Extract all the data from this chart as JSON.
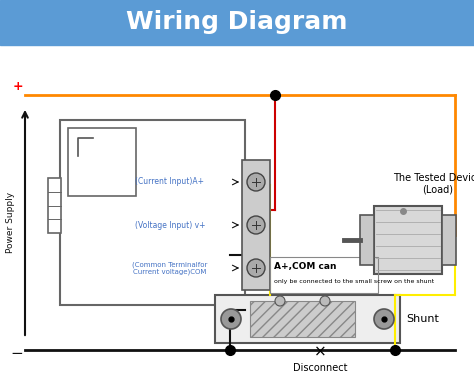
{
  "title": "Wiring Diagram",
  "title_color": "white",
  "title_bg_color": "#5b9bd5",
  "bg_color": "white",
  "orange_wire_color": "#ff8800",
  "red_wire_color": "#cc0000",
  "black_wire_color": "#111111",
  "yellow_wire_color": "#ffee00",
  "blue_text_color": "#4472c4",
  "plus_label": "+",
  "minus_label": "-",
  "power_supply_label": "Power Supply",
  "disconnect_label": "Disconnect",
  "shunt_label": "Shunt",
  "device_label": "The Tested Device\n(Load)",
  "a_plus_com_label": "A+,COM can",
  "a_plus_com_sub": "only be connected to\nthe small screw on the shunt",
  "current_input_label": "(Current Input)A+",
  "voltage_input_label": "(Voltage Input) v+",
  "common_terminal_label": "(Common Terminalfor\nCurrent voltage)COM"
}
